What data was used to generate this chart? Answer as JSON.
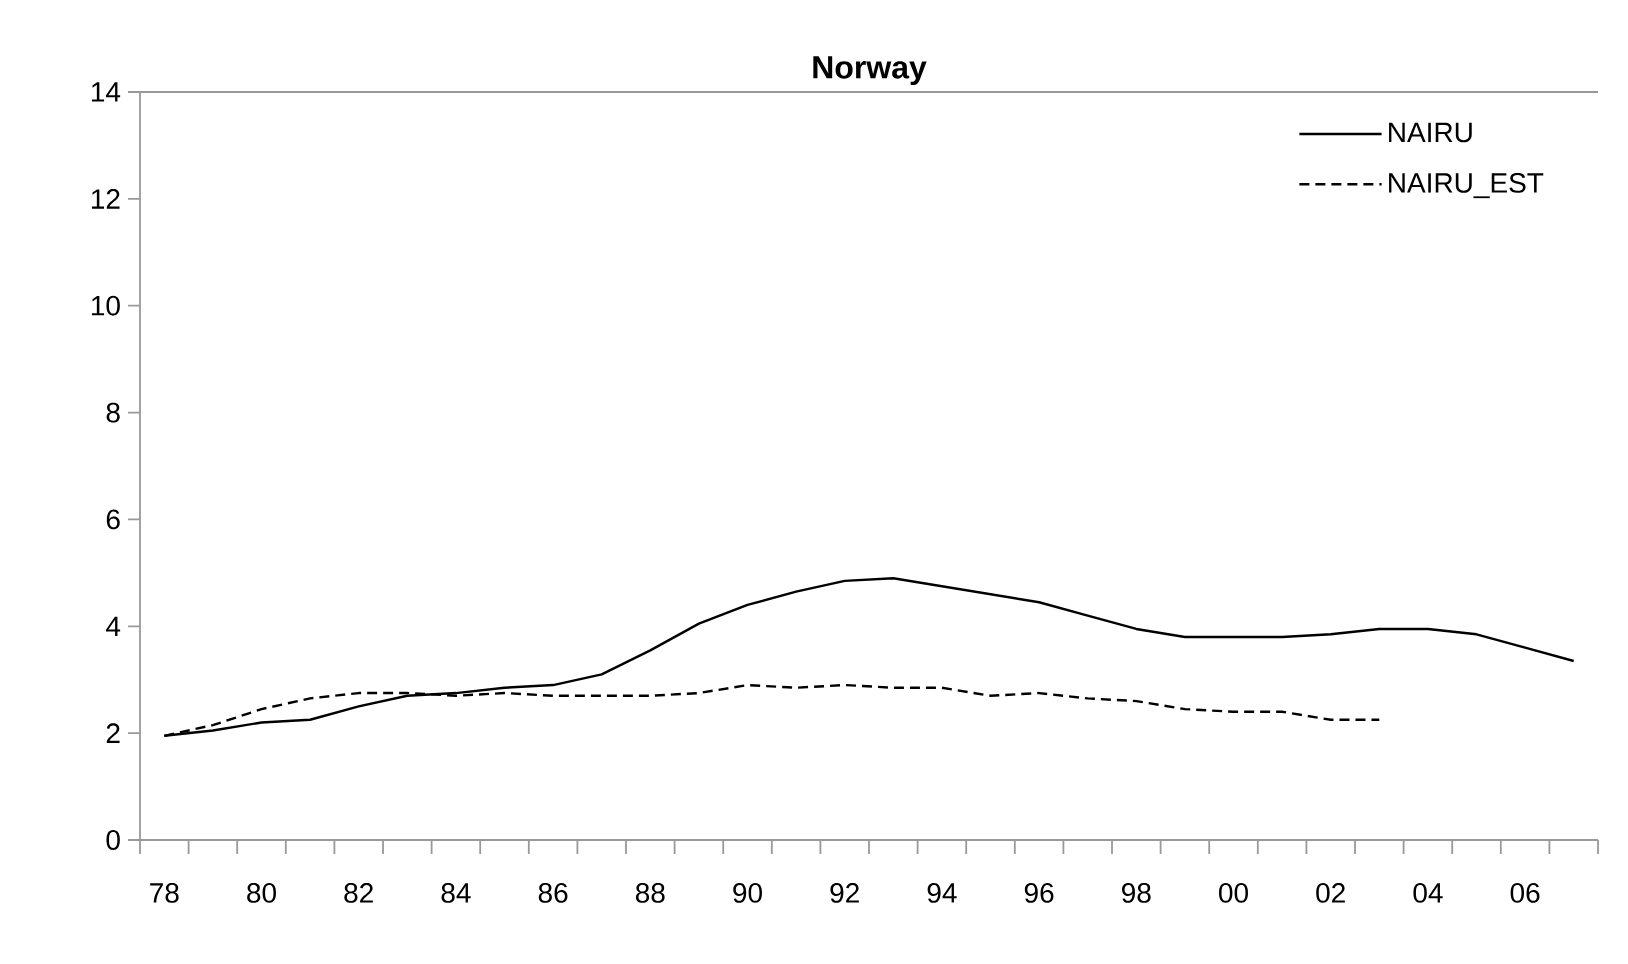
{
  "chart_data": {
    "type": "line",
    "title": "Norway",
    "categories": [
      "78",
      null,
      "80",
      null,
      "82",
      null,
      "84",
      null,
      "86",
      null,
      "88",
      null,
      "90",
      null,
      "92",
      null,
      "94",
      null,
      "96",
      null,
      "98",
      null,
      "00",
      null,
      "02",
      null,
      "04",
      null,
      "06",
      null
    ],
    "series": [
      {
        "name": "NAIRU",
        "color": "#000000",
        "line_style": "solid",
        "values": [
          1.95,
          2.05,
          2.2,
          2.25,
          2.5,
          2.7,
          2.75,
          2.85,
          2.9,
          3.1,
          3.55,
          4.05,
          4.4,
          4.65,
          4.85,
          4.9,
          4.75,
          4.6,
          4.45,
          4.2,
          3.95,
          3.8,
          3.8,
          3.8,
          3.85,
          3.95,
          3.95,
          3.85,
          3.6,
          3.35
        ]
      },
      {
        "name": "NAIRU_EST",
        "color": "#000000",
        "line_style": "dashed",
        "values": [
          1.95,
          2.15,
          2.45,
          2.65,
          2.75,
          2.75,
          2.7,
          2.75,
          2.7,
          2.7,
          2.7,
          2.75,
          2.9,
          2.85,
          2.9,
          2.85,
          2.85,
          2.7,
          2.75,
          2.65,
          2.6,
          2.45,
          2.4,
          2.4,
          2.25,
          2.25,
          null,
          null,
          null,
          null
        ]
      }
    ],
    "ylim": [
      0,
      14
    ],
    "yticks": [
      0,
      2,
      4,
      6,
      8,
      10,
      12,
      14
    ],
    "grid": false,
    "legend": "top right",
    "marker": "none"
  }
}
